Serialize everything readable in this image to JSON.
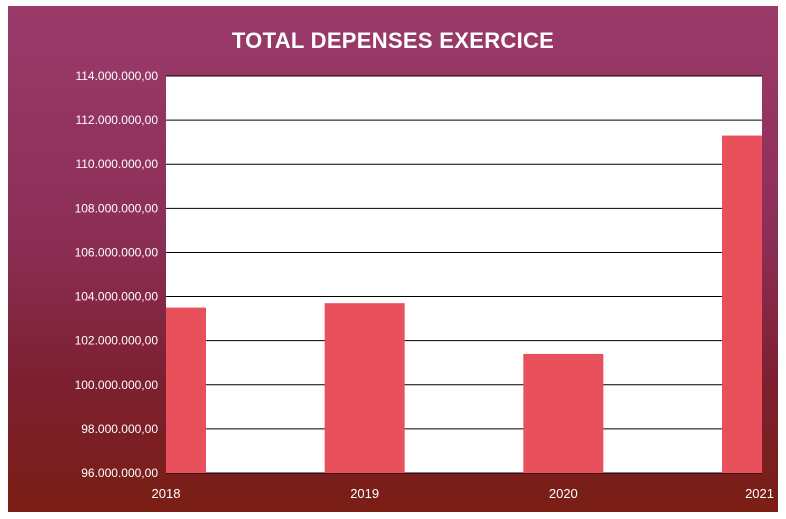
{
  "chart_data": {
    "type": "bar",
    "title": "TOTAL DEPENSES EXERCICE",
    "xlabel": "",
    "ylabel": "",
    "categories": [
      "2018",
      "2019",
      "2020",
      "2021"
    ],
    "values": [
      103500000,
      103700000,
      101400000,
      111300000
    ],
    "ylim": [
      96000000,
      114000000
    ],
    "yticks": [
      "96.000.000,00",
      "98.000.000,00",
      "100.000.000,00",
      "102.000.000,00",
      "104.000.000,00",
      "106.000.000,00",
      "108.000.000,00",
      "110.000.000,00",
      "112.000.000,00",
      "114.000.000,00"
    ],
    "grid": true,
    "legend": "none",
    "colors": {
      "bar": "#e8505b",
      "plot_background": "#ffffff",
      "gridline": "#000000",
      "text": "#ffffff"
    }
  }
}
